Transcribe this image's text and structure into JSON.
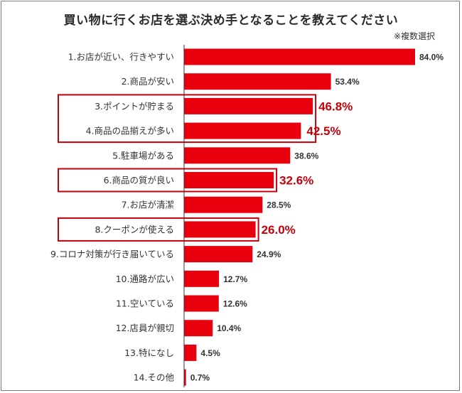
{
  "title": "買い物に行くお店を選ぶ決め手となることを教えてください",
  "subtitle": "※複数選択",
  "colors": {
    "bar": "#e8000d",
    "highlight": "#c6000b",
    "axis": "#333333"
  },
  "chart_data": {
    "type": "bar",
    "orientation": "horizontal",
    "categories": [
      "1.お店が近い、行きやすい",
      "2.商品が安い",
      "3.ポイントが貯まる",
      "4.商品の品揃えが多い",
      "5.駐車場がある",
      "6.商品の質が良い",
      "7.お店が清潔",
      "8.クーポンが使える",
      "9.コロナ対策が行き届いている",
      "10.通路が広い",
      "11.空いている",
      "12.店員が親切",
      "13.特になし",
      "14.その他"
    ],
    "values": [
      84.0,
      53.4,
      46.8,
      42.5,
      38.6,
      32.6,
      28.5,
      26.0,
      24.9,
      12.7,
      12.6,
      10.4,
      4.5,
      0.7
    ],
    "value_labels": [
      "84.0%",
      "53.4%",
      "46.8%",
      "42.5%",
      "38.6%",
      "32.6%",
      "28.5%",
      "26.0%",
      "24.9%",
      "12.7%",
      "12.6%",
      "10.4%",
      "4.5%",
      "0.7%"
    ],
    "highlight_groups": [
      [
        2,
        3
      ],
      [
        5
      ],
      [
        7
      ]
    ],
    "xlim": [
      0,
      100
    ],
    "grid": false,
    "legend": "none"
  }
}
